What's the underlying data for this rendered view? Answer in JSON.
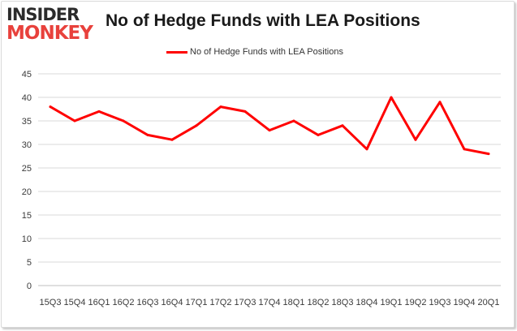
{
  "logo": {
    "line1": "INSIDER",
    "line2": "MONKEY"
  },
  "chart_data": {
    "type": "line",
    "title": "No of Hedge Funds with LEA Positions",
    "legend": {
      "position": "top-center"
    },
    "grid": true,
    "ylim": [
      0,
      45
    ],
    "yticks": [
      0,
      5,
      10,
      15,
      20,
      25,
      30,
      35,
      40,
      45
    ],
    "categories": [
      "15Q3",
      "15Q4",
      "16Q1",
      "16Q2",
      "16Q3",
      "16Q4",
      "17Q1",
      "17Q2",
      "17Q3",
      "17Q4",
      "18Q1",
      "18Q2",
      "18Q3",
      "18Q4",
      "19Q1",
      "19Q2",
      "19Q3",
      "19Q4",
      "20Q1"
    ],
    "series": [
      {
        "name": "No of Hedge Funds with LEA Positions",
        "color": "#ff0000",
        "values": [
          38,
          35,
          37,
          35,
          32,
          31,
          34,
          38,
          37,
          33,
          35,
          32,
          34,
          29,
          40,
          31,
          39,
          29,
          28
        ]
      }
    ]
  }
}
